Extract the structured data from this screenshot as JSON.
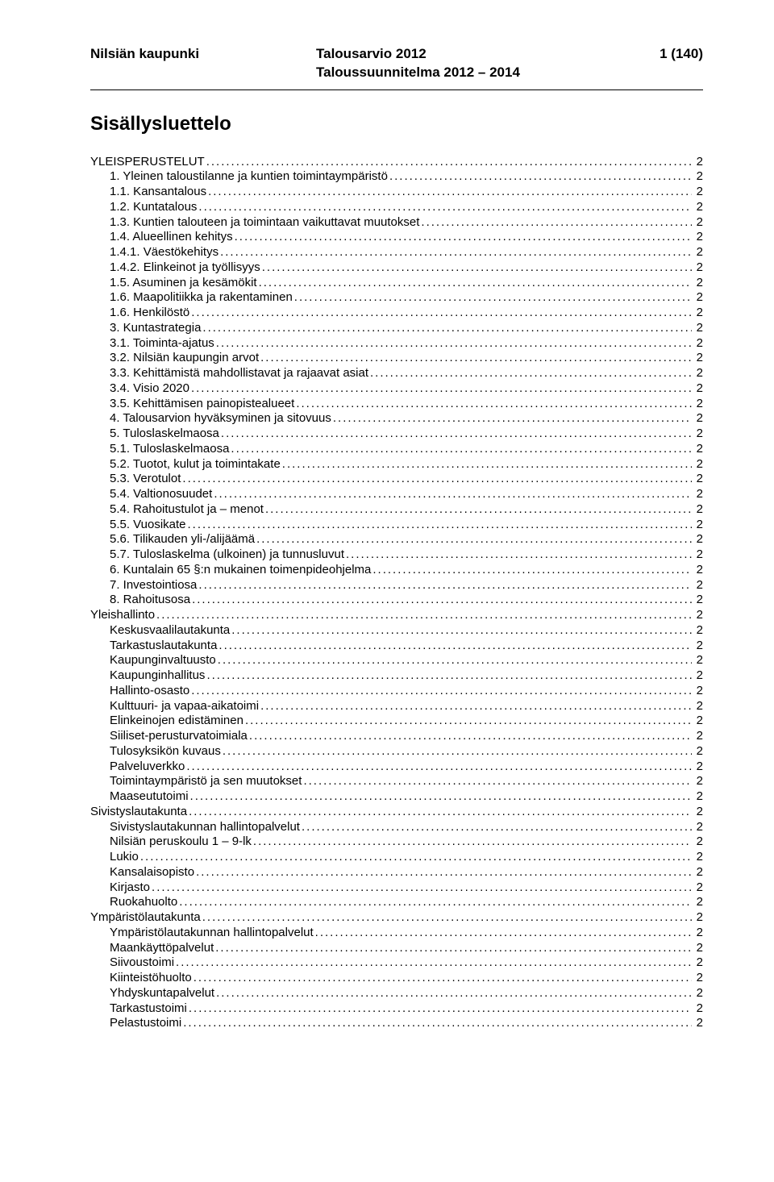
{
  "header": {
    "org": "Nilsiän kaupunki",
    "doc_title_short": "Talousarvio 2012",
    "doc_subtitle": "Taloussuunnitelma 2012 – 2014",
    "page_label": "1 (140)"
  },
  "title": "Sisällysluettelo",
  "toc": [
    {
      "label": "YLEISPERUSTELUT",
      "page": "2",
      "indent": 0
    },
    {
      "label": "1. Yleinen taloustilanne ja kuntien toimintaympäristö",
      "page": "2",
      "indent": 1
    },
    {
      "label": "1.1. Kansantalous",
      "page": "2",
      "indent": 1
    },
    {
      "label": "1.2. Kuntatalous",
      "page": "2",
      "indent": 1
    },
    {
      "label": "1.3. Kuntien talouteen ja toimintaan vaikuttavat muutokset",
      "page": "2",
      "indent": 1
    },
    {
      "label": "1.4. Alueellinen kehitys",
      "page": "2",
      "indent": 1
    },
    {
      "label": "1.4.1. Väestökehitys",
      "page": "2",
      "indent": 1
    },
    {
      "label": "1.4.2. Elinkeinot ja työllisyys",
      "page": "2",
      "indent": 1
    },
    {
      "label": "1.5. Asuminen ja kesämökit",
      "page": "2",
      "indent": 1
    },
    {
      "label": "1.6. Maapolitiikka ja rakentaminen",
      "page": "2",
      "indent": 1
    },
    {
      "label": "1.6. Henkilöstö",
      "page": "2",
      "indent": 1
    },
    {
      "label": "3. Kuntastrategia",
      "page": "2",
      "indent": 1
    },
    {
      "label": "3.1. Toiminta-ajatus",
      "page": "2",
      "indent": 1
    },
    {
      "label": "3.2. Nilsiän kaupungin arvot",
      "page": "2",
      "indent": 1
    },
    {
      "label": "3.3. Kehittämistä mahdollistavat ja rajaavat asiat",
      "page": "2",
      "indent": 1
    },
    {
      "label": "3.4. Visio 2020",
      "page": "2",
      "indent": 1
    },
    {
      "label": "3.5. Kehittämisen painopistealueet",
      "page": "2",
      "indent": 1
    },
    {
      "label": "4. Talousarvion hyväksyminen ja sitovuus",
      "page": "2",
      "indent": 1
    },
    {
      "label": "5. Tuloslaskelmaosa",
      "page": "2",
      "indent": 1
    },
    {
      "label": "5.1. Tuloslaskelmaosa",
      "page": "2",
      "indent": 1
    },
    {
      "label": "5.2. Tuotot, kulut ja toimintakate",
      "page": "2",
      "indent": 1
    },
    {
      "label": "5.3. Verotulot",
      "page": "2",
      "indent": 1
    },
    {
      "label": "5.4. Valtionosuudet",
      "page": "2",
      "indent": 1
    },
    {
      "label": "5.4. Rahoitustulot ja – menot",
      "page": "2",
      "indent": 1
    },
    {
      "label": "5.5. Vuosikate",
      "page": "2",
      "indent": 1
    },
    {
      "label": "5.6. Tilikauden yli-/alijäämä",
      "page": "2",
      "indent": 1
    },
    {
      "label": "5.7. Tuloslaskelma (ulkoinen) ja tunnusluvut",
      "page": "2",
      "indent": 1
    },
    {
      "label": "6. Kuntalain 65 §:n mukainen toimenpideohjelma",
      "page": "2",
      "indent": 1
    },
    {
      "label": "7. Investointiosa",
      "page": "2",
      "indent": 1
    },
    {
      "label": "8. Rahoitusosa",
      "page": "2",
      "indent": 1
    },
    {
      "label": "Yleishallinto",
      "page": "2",
      "indent": 0
    },
    {
      "label": "Keskusvaalilautakunta",
      "page": "2",
      "indent": 1
    },
    {
      "label": "Tarkastuslautakunta",
      "page": "2",
      "indent": 1
    },
    {
      "label": "Kaupunginvaltuusto",
      "page": "2",
      "indent": 1
    },
    {
      "label": "Kaupunginhallitus",
      "page": "2",
      "indent": 1
    },
    {
      "label": "Hallinto-osasto",
      "page": "2",
      "indent": 1
    },
    {
      "label": "Kulttuuri- ja vapaa-aikatoimi",
      "page": "2",
      "indent": 1
    },
    {
      "label": "Elinkeinojen edistäminen",
      "page": "2",
      "indent": 1
    },
    {
      "label": "Siiliset-perusturvatoimiala",
      "page": "2",
      "indent": 1
    },
    {
      "label": "Tulosyksikön kuvaus",
      "page": "2",
      "indent": 1
    },
    {
      "label": "Palveluverkko",
      "page": "2",
      "indent": 1
    },
    {
      "label": "Toimintaympäristö ja sen muutokset",
      "page": "2",
      "indent": 1
    },
    {
      "label": "Maaseututoimi",
      "page": "2",
      "indent": 1
    },
    {
      "label": "Sivistyslautakunta",
      "page": "2",
      "indent": 0
    },
    {
      "label": "Sivistyslautakunnan hallintopalvelut",
      "page": "2",
      "indent": 1
    },
    {
      "label": "Nilsiän peruskoulu 1  – 9-lk",
      "page": "2",
      "indent": 1
    },
    {
      "label": "Lukio",
      "page": "2",
      "indent": 1
    },
    {
      "label": "Kansalaisopisto",
      "page": "2",
      "indent": 1
    },
    {
      "label": "Kirjasto",
      "page": "2",
      "indent": 1
    },
    {
      "label": "Ruokahuolto",
      "page": "2",
      "indent": 1
    },
    {
      "label": "Ympäristölautakunta",
      "page": "2",
      "indent": 0
    },
    {
      "label": "Ympäristölautakunnan hallintopalvelut",
      "page": "2",
      "indent": 1
    },
    {
      "label": "Maankäyttöpalvelut",
      "page": "2",
      "indent": 1
    },
    {
      "label": "Siivoustoimi",
      "page": "2",
      "indent": 1
    },
    {
      "label": "Kiinteistöhuolto",
      "page": "2",
      "indent": 1
    },
    {
      "label": "Yhdyskuntapalvelut",
      "page": "2",
      "indent": 1
    },
    {
      "label": "Tarkastustoimi",
      "page": "2",
      "indent": 1
    },
    {
      "label": "Pelastustoimi",
      "page": "2",
      "indent": 1
    }
  ]
}
